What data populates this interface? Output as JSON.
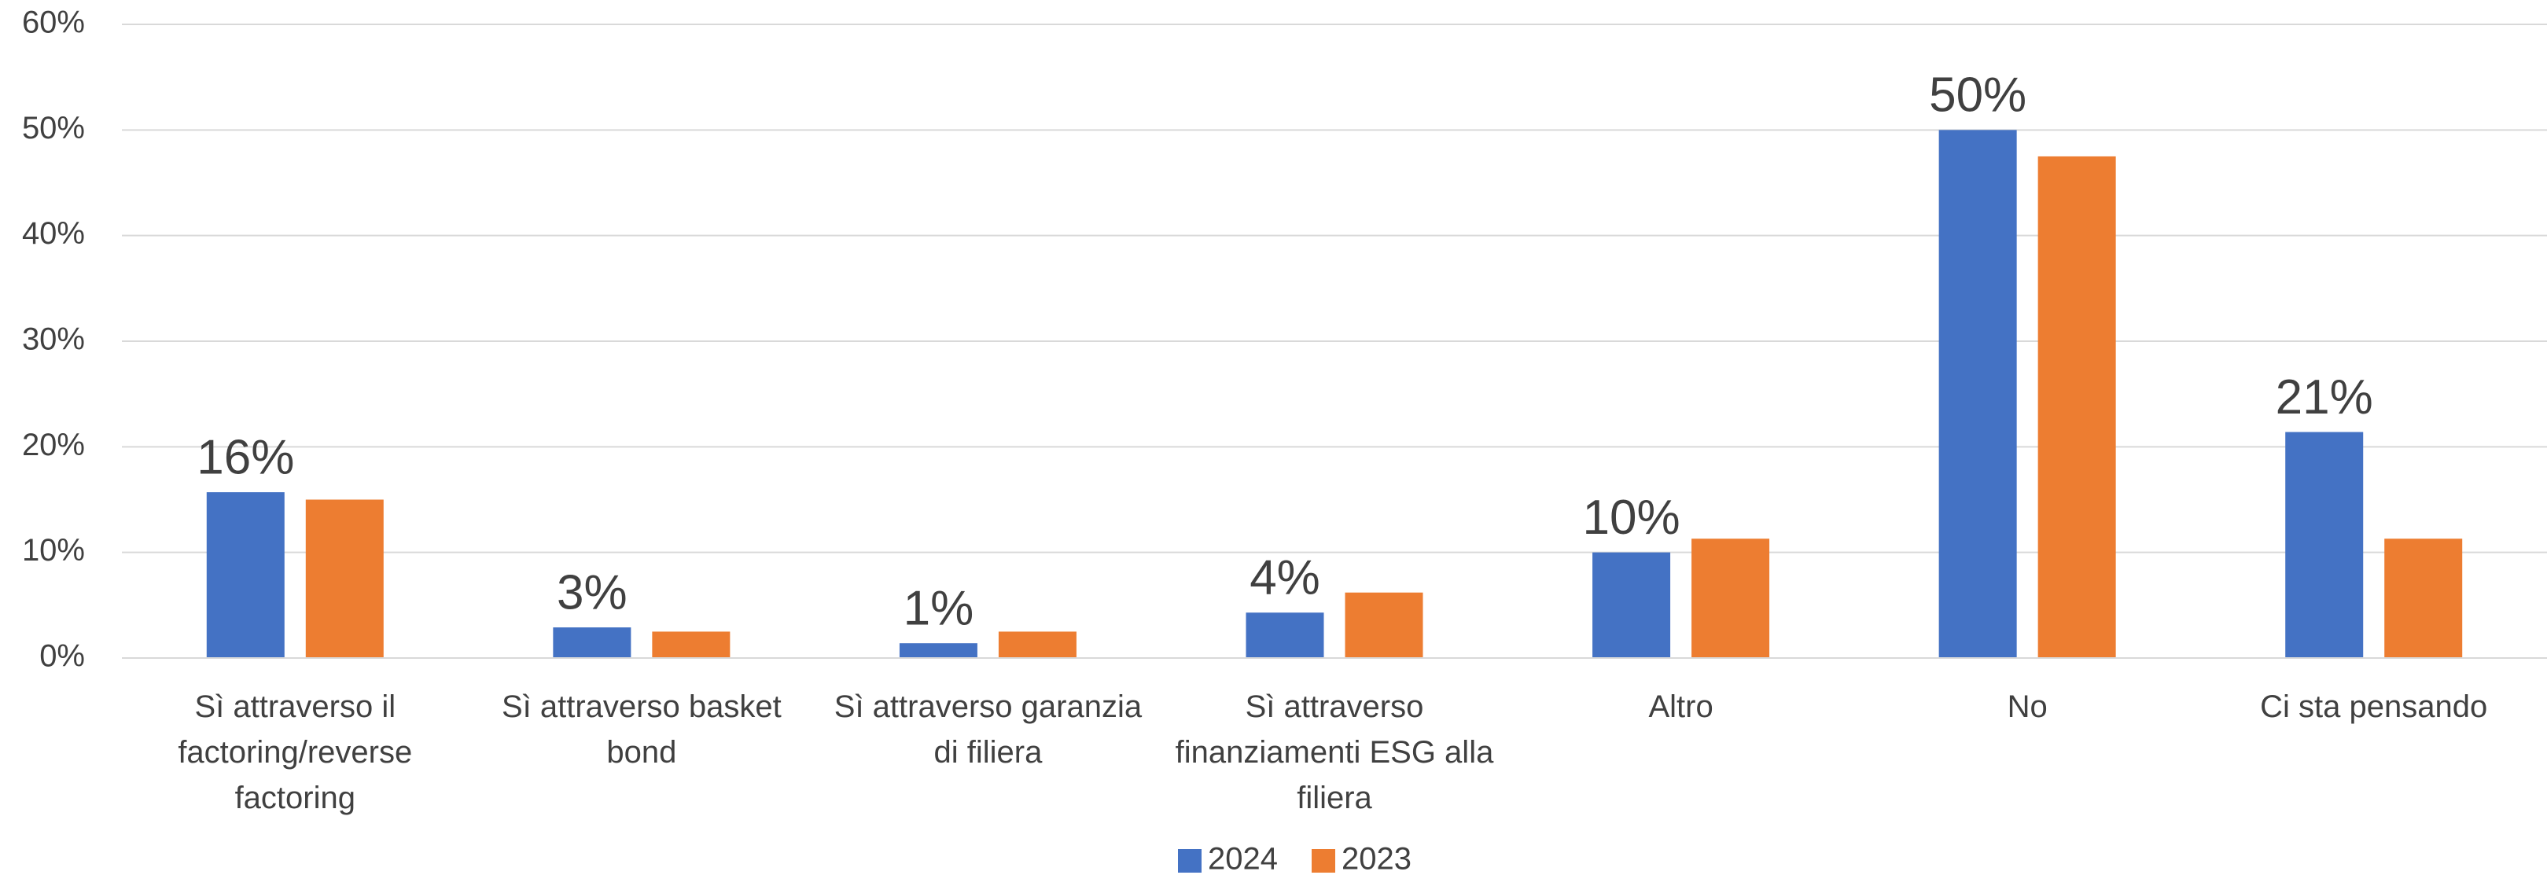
{
  "chart_data": {
    "type": "bar",
    "categories": [
      "Sì attraverso il factoring/reverse factoring",
      "Sì attraverso basket bond",
      "Sì attraverso garanzia di filiera",
      "Sì attraverso finanziamenti ESG alla filiera",
      "Altro",
      "No",
      "Ci sta pensando"
    ],
    "series": [
      {
        "name": "2024",
        "color": "#4472c4",
        "values": [
          15.7,
          2.9,
          1.4,
          4.3,
          10,
          50,
          21.4
        ],
        "value_labels": [
          "16%",
          "3%",
          "1%",
          "4%",
          "10%",
          "50%",
          "21%"
        ]
      },
      {
        "name": "2023",
        "color": "#ed7d31",
        "values": [
          15,
          2.5,
          2.5,
          6.2,
          11.3,
          47.5,
          11.3
        ]
      }
    ],
    "ylim": [
      0,
      60
    ],
    "yticks": [
      {
        "value": 0,
        "label": "0%"
      },
      {
        "value": 10,
        "label": "10%"
      },
      {
        "value": 20,
        "label": "20%"
      },
      {
        "value": 30,
        "label": "30%"
      },
      {
        "value": 40,
        "label": "40%"
      },
      {
        "value": 50,
        "label": "50%"
      },
      {
        "value": 60,
        "label": "60%"
      }
    ],
    "grid": true,
    "legend": "bottom"
  }
}
